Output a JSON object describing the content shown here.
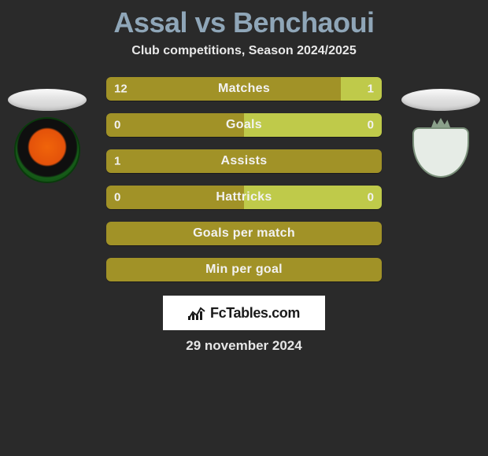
{
  "title": "Assal vs Benchaoui",
  "subtitle": "Club competitions, Season 2024/2025",
  "date": "29 november 2024",
  "footer_brand": "FcTables.com",
  "colors": {
    "left": "#a19227",
    "right": "#bfca4a",
    "bg": "#2a2a2a",
    "title": "#8fa6b8"
  },
  "badges": {
    "left": {
      "name": "rs-berkane-badge"
    },
    "right": {
      "name": "opponent-badge"
    }
  },
  "bars": [
    {
      "label": "Matches",
      "left": "12",
      "right": "1",
      "left_ratio": 0.85,
      "right_ratio": 0.15,
      "show_vals": true
    },
    {
      "label": "Goals",
      "left": "0",
      "right": "0",
      "left_ratio": 0.5,
      "right_ratio": 0.5,
      "show_vals": true
    },
    {
      "label": "Assists",
      "left": "1",
      "right": "",
      "left_ratio": 1.0,
      "right_ratio": 0.0,
      "show_vals": true
    },
    {
      "label": "Hattricks",
      "left": "0",
      "right": "0",
      "left_ratio": 0.5,
      "right_ratio": 0.5,
      "show_vals": true
    },
    {
      "label": "Goals per match",
      "left": "",
      "right": "",
      "left_ratio": 1.0,
      "right_ratio": 0.0,
      "show_vals": false
    },
    {
      "label": "Min per goal",
      "left": "",
      "right": "",
      "left_ratio": 1.0,
      "right_ratio": 0.0,
      "show_vals": false
    }
  ]
}
